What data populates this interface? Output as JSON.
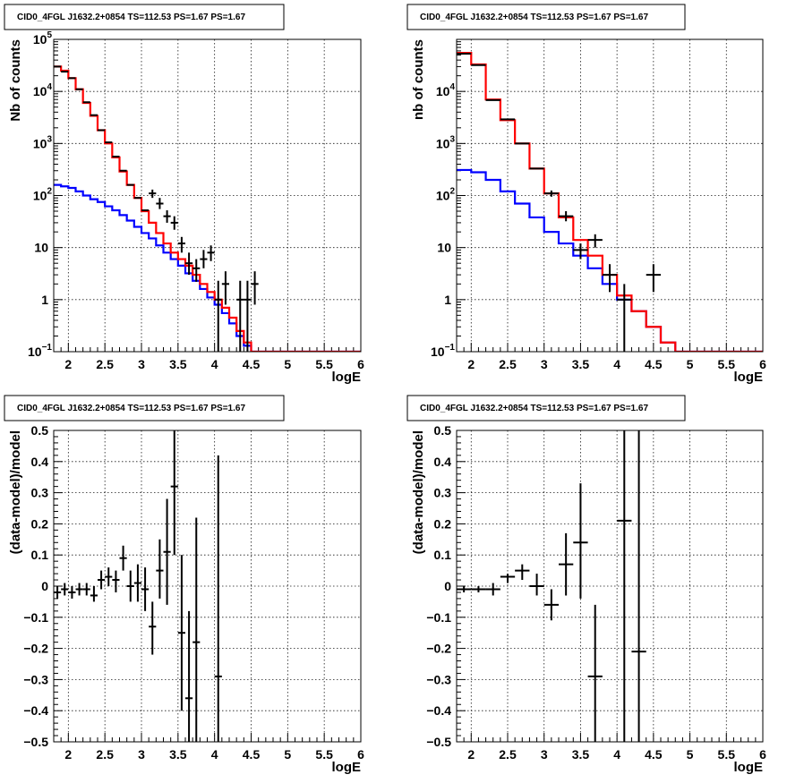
{
  "chart_data": [
    {
      "type": "line",
      "title": "CID0_4FGL J1632.2+0854 TS=112.53 PS=1.67 PS=1.67",
      "xlabel": "logE",
      "ylabel": "Nb of counts",
      "xlim": [
        1.8,
        6
      ],
      "ylim": [
        0.1,
        100000
      ],
      "yscale": "log",
      "grid": true,
      "xticks": [
        "2",
        "2.5",
        "3",
        "3.5",
        "4",
        "4.5",
        "5",
        "5.5",
        "6"
      ],
      "yticks": [
        {
          "v": 0.1,
          "label": "10",
          "sup": "−1"
        },
        {
          "v": 1,
          "label": "1"
        },
        {
          "v": 10,
          "label": "10"
        },
        {
          "v": 100,
          "label": "10",
          "sup": "2"
        },
        {
          "v": 1000,
          "label": "10",
          "sup": "3"
        },
        {
          "v": 10000,
          "label": "10",
          "sup": "4"
        },
        {
          "v": 100000,
          "label": "10",
          "sup": "5"
        }
      ],
      "binning": {
        "start": 1.8,
        "width": 0.1
      },
      "series": [
        {
          "color": "#0000ff",
          "kind": "step",
          "values": [
            160,
            150,
            140,
            120,
            100,
            85,
            75,
            62,
            52,
            42,
            33,
            25,
            19,
            15,
            11,
            8,
            6,
            4.5,
            3.2,
            2.3,
            1.6,
            1.1,
            0.8,
            0.55,
            0.35,
            0.2,
            0.13,
            0.1,
            0.1,
            0.1,
            0.1,
            0.1,
            0.1,
            0.1,
            0.1,
            0.1,
            0.1,
            0.1,
            0.1,
            0.1,
            0.1,
            0.1
          ]
        },
        {
          "color": "#ff0000",
          "kind": "step",
          "values": [
            30000,
            25000,
            18000,
            11000,
            6000,
            3400,
            1800,
            1000,
            540,
            290,
            160,
            90,
            50,
            30,
            19,
            12,
            8,
            6,
            4.5,
            3,
            2,
            1.4,
            1,
            0.7,
            0.45,
            0.25,
            0.15,
            0.1,
            0.1,
            0.1,
            0.1,
            0.1,
            0.1,
            0.1,
            0.1,
            0.1,
            0.1,
            0.1,
            0.1,
            0.1,
            0.1,
            0.1
          ]
        },
        {
          "color": "#000000",
          "kind": "points",
          "points": [
            {
              "x": 1.85,
              "y": 30000
            },
            {
              "x": 1.95,
              "y": 24000
            },
            {
              "x": 2.05,
              "y": 18000
            },
            {
              "x": 2.15,
              "y": 11000
            },
            {
              "x": 2.25,
              "y": 6200
            },
            {
              "x": 2.35,
              "y": 3500
            },
            {
              "x": 2.45,
              "y": 1800
            },
            {
              "x": 2.55,
              "y": 1050
            },
            {
              "x": 2.65,
              "y": 560
            },
            {
              "x": 2.75,
              "y": 300
            },
            {
              "x": 2.85,
              "y": 160
            },
            {
              "x": 2.95,
              "y": 90
            },
            {
              "x": 3.05,
              "y": 52
            },
            {
              "x": 3.15,
              "y": 110,
              "ylo": 90,
              "yhi": 130
            },
            {
              "x": 3.25,
              "y": 70,
              "ylo": 55,
              "yhi": 90
            },
            {
              "x": 3.35,
              "y": 40,
              "ylo": 30,
              "yhi": 52
            },
            {
              "x": 3.45,
              "y": 30,
              "ylo": 22,
              "yhi": 40
            },
            {
              "x": 3.55,
              "y": 12,
              "ylo": 8,
              "yhi": 16
            },
            {
              "x": 3.65,
              "y": 5,
              "ylo": 3,
              "yhi": 8
            },
            {
              "x": 3.75,
              "y": 4,
              "ylo": 2.2,
              "yhi": 6
            },
            {
              "x": 3.85,
              "y": 6,
              "ylo": 4,
              "yhi": 9
            },
            {
              "x": 3.95,
              "y": 8,
              "ylo": 5.5,
              "yhi": 11
            },
            {
              "x": 4.05,
              "y": 1,
              "ylo": 0.1,
              "yhi": 2.3
            },
            {
              "x": 4.15,
              "y": 2,
              "ylo": 0.8,
              "yhi": 3.5
            },
            {
              "x": 4.35,
              "y": 1,
              "ylo": 0.1,
              "yhi": 2.3
            },
            {
              "x": 4.45,
              "y": 1,
              "ylo": 0.1,
              "yhi": 2.3
            },
            {
              "x": 4.55,
              "y": 2,
              "ylo": 0.8,
              "yhi": 3.5
            }
          ]
        }
      ]
    },
    {
      "type": "line",
      "title": "CID0_4FGL J1632.2+0854 TS=112.53 PS=1.67 PS=1.67",
      "xlabel": "logE",
      "ylabel": "nb of counts",
      "xlim": [
        1.8,
        6
      ],
      "ylim": [
        0.1,
        100000
      ],
      "yscale": "log",
      "grid": true,
      "xticks": [
        "2",
        "2.5",
        "3",
        "3.5",
        "4",
        "4.5",
        "5",
        "5.5",
        "6"
      ],
      "yticks": [
        {
          "v": 0.1,
          "label": "10",
          "sup": "−1"
        },
        {
          "v": 1,
          "label": "1"
        },
        {
          "v": 10,
          "label": "10"
        },
        {
          "v": 100,
          "label": "10",
          "sup": "2"
        },
        {
          "v": 1000,
          "label": "10",
          "sup": "3"
        },
        {
          "v": 10000,
          "label": "10",
          "sup": "4"
        }
      ],
      "binning": {
        "start": 1.8,
        "width": 0.2
      },
      "series": [
        {
          "color": "#0000ff",
          "kind": "step",
          "values": [
            310,
            280,
            200,
            120,
            70,
            38,
            20,
            12,
            7,
            4,
            2,
            1,
            0.6,
            0.3,
            0.15,
            0.1,
            0.1,
            0.1,
            0.1,
            0.1,
            0.1
          ]
        },
        {
          "color": "#ff0000",
          "kind": "step",
          "values": [
            55000,
            33000,
            7000,
            2800,
            1000,
            330,
            110,
            38,
            14,
            7,
            3,
            1.2,
            0.6,
            0.3,
            0.15,
            0.1,
            0.1,
            0.1,
            0.1,
            0.1,
            0.1
          ]
        },
        {
          "color": "#000000",
          "kind": "points",
          "points": [
            {
              "x": 1.9,
              "y": 53000
            },
            {
              "x": 2.1,
              "y": 32000
            },
            {
              "x": 2.3,
              "y": 6800
            },
            {
              "x": 2.5,
              "y": 2900
            },
            {
              "x": 2.7,
              "y": 1000
            },
            {
              "x": 2.9,
              "y": 330
            },
            {
              "x": 3.1,
              "y": 110,
              "ylo": 95,
              "yhi": 125
            },
            {
              "x": 3.3,
              "y": 40,
              "ylo": 32,
              "yhi": 50
            },
            {
              "x": 3.5,
              "y": 9,
              "ylo": 6,
              "yhi": 12
            },
            {
              "x": 3.7,
              "y": 14,
              "ylo": 10,
              "yhi": 18
            },
            {
              "x": 3.9,
              "y": 3,
              "ylo": 1.4,
              "yhi": 4.8
            },
            {
              "x": 4.1,
              "y": 1,
              "ylo": 0.1,
              "yhi": 2
            },
            {
              "x": 4.5,
              "y": 3,
              "ylo": 1.4,
              "yhi": 4.8
            }
          ]
        }
      ]
    },
    {
      "type": "scatter",
      "title": "CID0_4FGL J1632.2+0854 TS=112.53 PS=1.67 PS=1.67",
      "xlabel": "logE",
      "ylabel": "(data-model)/model",
      "xlim": [
        1.8,
        6
      ],
      "ylim": [
        -0.5,
        0.5
      ],
      "grid": true,
      "xticks": [
        "2",
        "2.5",
        "3",
        "3.5",
        "4",
        "4.5",
        "5",
        "5.5",
        "6"
      ],
      "yticks": [
        {
          "v": -0.5,
          "label": "−0.5"
        },
        {
          "v": -0.4,
          "label": "−0.4"
        },
        {
          "v": -0.3,
          "label": "−0.3"
        },
        {
          "v": -0.2,
          "label": "−0.2"
        },
        {
          "v": -0.1,
          "label": "−0.1"
        },
        {
          "v": 0,
          "label": "0"
        },
        {
          "v": 0.1,
          "label": "0.1"
        },
        {
          "v": 0.2,
          "label": "0.2"
        },
        {
          "v": 0.3,
          "label": "0.3"
        },
        {
          "v": 0.4,
          "label": "0.4"
        },
        {
          "v": 0.5,
          "label": "0.5"
        }
      ],
      "xerr": 0.05,
      "series": [
        {
          "color": "#000000",
          "kind": "points",
          "points": [
            {
              "x": 1.85,
              "y": -0.02,
              "ylo": -0.04,
              "yhi": 0.0
            },
            {
              "x": 1.95,
              "y": -0.01,
              "ylo": -0.03,
              "yhi": 0.01
            },
            {
              "x": 2.05,
              "y": -0.02,
              "ylo": -0.04,
              "yhi": 0.0
            },
            {
              "x": 2.15,
              "y": -0.01,
              "ylo": -0.03,
              "yhi": 0.01
            },
            {
              "x": 2.25,
              "y": -0.01,
              "ylo": -0.03,
              "yhi": 0.01
            },
            {
              "x": 2.35,
              "y": -0.03,
              "ylo": -0.05,
              "yhi": 0.0
            },
            {
              "x": 2.45,
              "y": 0.02,
              "ylo": -0.01,
              "yhi": 0.05
            },
            {
              "x": 2.55,
              "y": 0.03,
              "ylo": 0.0,
              "yhi": 0.06
            },
            {
              "x": 2.65,
              "y": 0.02,
              "ylo": -0.02,
              "yhi": 0.05
            },
            {
              "x": 2.75,
              "y": 0.09,
              "ylo": 0.05,
              "yhi": 0.13
            },
            {
              "x": 2.85,
              "y": 0.0,
              "ylo": -0.05,
              "yhi": 0.05
            },
            {
              "x": 2.95,
              "y": 0.01,
              "ylo": -0.05,
              "yhi": 0.07
            },
            {
              "x": 3.05,
              "y": -0.01,
              "ylo": -0.08,
              "yhi": 0.06
            },
            {
              "x": 3.15,
              "y": -0.13,
              "ylo": -0.22,
              "yhi": -0.05
            },
            {
              "x": 3.25,
              "y": 0.05,
              "ylo": -0.04,
              "yhi": 0.15
            },
            {
              "x": 3.35,
              "y": 0.11,
              "ylo": -0.06,
              "yhi": 0.28
            },
            {
              "x": 3.45,
              "y": 0.32,
              "ylo": 0.1,
              "yhi": 0.5
            },
            {
              "x": 3.55,
              "y": -0.15,
              "ylo": -0.4,
              "yhi": 0.1
            },
            {
              "x": 3.65,
              "y": -0.36,
              "ylo": -0.5,
              "yhi": -0.08
            },
            {
              "x": 3.75,
              "y": -0.18,
              "ylo": -0.5,
              "yhi": 0.22
            },
            {
              "x": 4.05,
              "y": -0.29,
              "ylo": -0.5,
              "yhi": 0.42
            }
          ]
        }
      ]
    },
    {
      "type": "scatter",
      "title": "CID0_4FGL J1632.2+0854 TS=112.53 PS=1.67 PS=1.67",
      "xlabel": "logE",
      "ylabel": "(data-model)/model",
      "xlim": [
        1.8,
        6
      ],
      "ylim": [
        -0.5,
        0.5
      ],
      "grid": true,
      "xticks": [
        "2",
        "2.5",
        "3",
        "3.5",
        "4",
        "4.5",
        "5",
        "5.5",
        "6"
      ],
      "yticks": [
        {
          "v": -0.5,
          "label": "−0.5"
        },
        {
          "v": -0.4,
          "label": "−0.4"
        },
        {
          "v": -0.3,
          "label": "−0.3"
        },
        {
          "v": -0.2,
          "label": "−0.2"
        },
        {
          "v": -0.1,
          "label": "−0.1"
        },
        {
          "v": 0,
          "label": "0"
        },
        {
          "v": 0.1,
          "label": "0.1"
        },
        {
          "v": 0.2,
          "label": "0.2"
        },
        {
          "v": 0.3,
          "label": "0.3"
        },
        {
          "v": 0.4,
          "label": "0.4"
        },
        {
          "v": 0.5,
          "label": "0.5"
        }
      ],
      "xerr": 0.1,
      "series": [
        {
          "color": "#000000",
          "kind": "points",
          "points": [
            {
              "x": 1.9,
              "y": -0.01,
              "ylo": -0.02,
              "yhi": 0.0
            },
            {
              "x": 2.1,
              "y": -0.01,
              "ylo": -0.02,
              "yhi": 0.0
            },
            {
              "x": 2.3,
              "y": -0.01,
              "ylo": -0.03,
              "yhi": 0.01
            },
            {
              "x": 2.5,
              "y": 0.03,
              "ylo": 0.01,
              "yhi": 0.04
            },
            {
              "x": 2.7,
              "y": 0.05,
              "ylo": 0.02,
              "yhi": 0.07
            },
            {
              "x": 2.9,
              "y": 0.0,
              "ylo": -0.03,
              "yhi": 0.04
            },
            {
              "x": 3.1,
              "y": -0.06,
              "ylo": -0.11,
              "yhi": -0.01
            },
            {
              "x": 3.3,
              "y": 0.07,
              "ylo": -0.03,
              "yhi": 0.17
            },
            {
              "x": 3.5,
              "y": 0.14,
              "ylo": -0.04,
              "yhi": 0.33
            },
            {
              "x": 3.7,
              "y": -0.29,
              "ylo": -0.5,
              "yhi": -0.06
            },
            {
              "x": 4.1,
              "y": 0.21,
              "ylo": -0.5,
              "yhi": 0.5
            },
            {
              "x": 4.3,
              "y": -0.21,
              "ylo": -0.5,
              "yhi": 0.5
            }
          ]
        }
      ]
    }
  ]
}
